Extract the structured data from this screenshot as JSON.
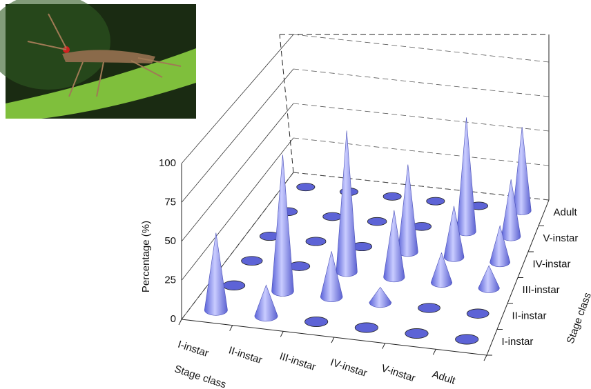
{
  "chart_data": {
    "type": "cone3d",
    "y_label": "Percentage (%)",
    "x_label": "Stage class",
    "z_label": "Stage class",
    "categories": [
      "I-instar",
      "II-instar",
      "III-instar",
      "IV-instar",
      "V-instar",
      "Adult"
    ],
    "depth_categories": [
      "I-instar",
      "II-instar",
      "III-instar",
      "IV-instar",
      "V-instar",
      "Adult"
    ],
    "values": [
      [
        50,
        20,
        0,
        0,
        0,
        0
      ],
      [
        0,
        90,
        30,
        10,
        0,
        0
      ],
      [
        0,
        0,
        95,
        45,
        20,
        15
      ],
      [
        0,
        0,
        0,
        60,
        35,
        25
      ],
      [
        0,
        0,
        0,
        0,
        80,
        40
      ],
      [
        0,
        0,
        0,
        0,
        0,
        60
      ]
    ],
    "color": "#7f86f0",
    "ylim": [
      0,
      100
    ],
    "yticks": [
      0,
      25,
      50,
      75,
      100
    ],
    "grid": true
  }
}
